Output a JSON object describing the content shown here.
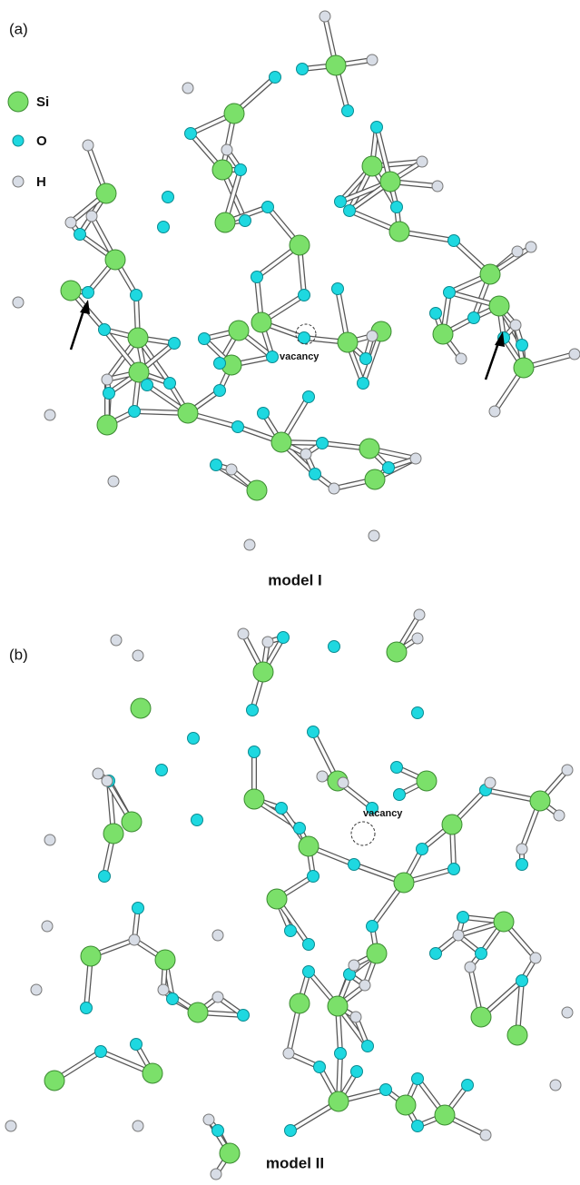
{
  "panels": [
    {
      "label": "(a)",
      "legend": [
        "Si",
        "O",
        "H"
      ],
      "vacancy": "vacancy",
      "caption": "model I"
    },
    {
      "label": "(b)",
      "vacancy": "vacancy",
      "caption": "model II"
    }
  ]
}
